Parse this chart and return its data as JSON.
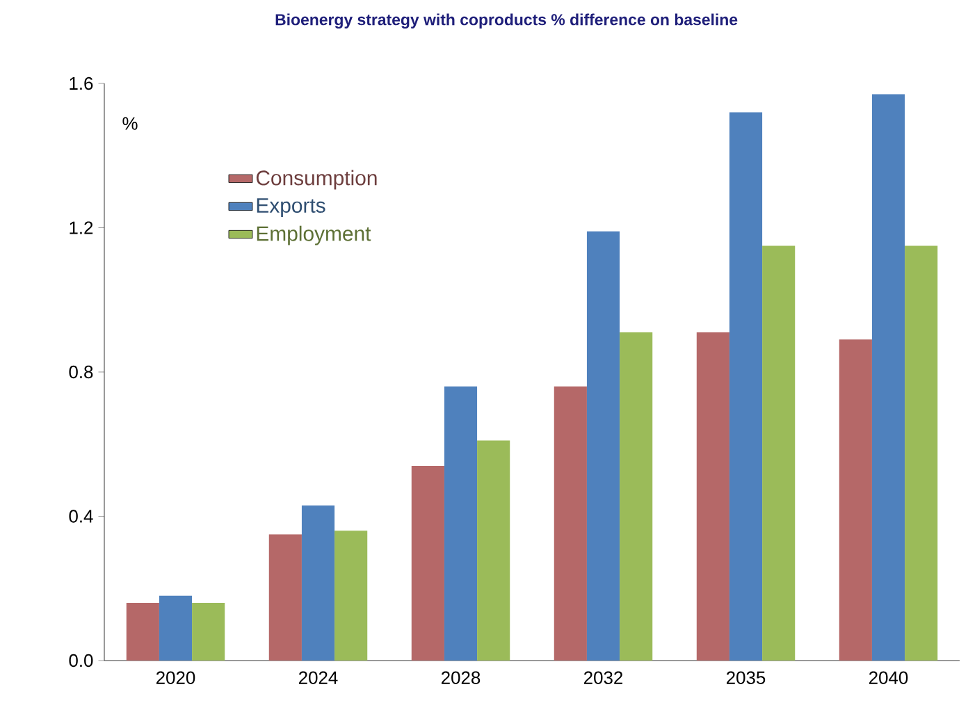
{
  "chart_data": {
    "type": "bar",
    "title": "Bioenergy strategy with coproducts % difference on baseline",
    "ylabel": "%",
    "categories": [
      "2020",
      "2024",
      "2028",
      "2032",
      "2035",
      "2040"
    ],
    "series": [
      {
        "name": "Consumption",
        "color": "#b56868",
        "values": [
          0.16,
          0.35,
          0.54,
          0.76,
          0.91,
          0.89
        ]
      },
      {
        "name": "Exports",
        "color": "#4f81bd",
        "values": [
          0.18,
          0.43,
          0.76,
          1.19,
          1.52,
          1.57
        ]
      },
      {
        "name": "Employment",
        "color": "#9bbb59",
        "values": [
          0.16,
          0.36,
          0.61,
          0.91,
          1.15,
          1.15
        ]
      }
    ],
    "ylim": [
      0,
      1.6
    ],
    "yticks": [
      {
        "value": 0,
        "label": "0.0"
      },
      0.4,
      0.8,
      1.2,
      1.6
    ],
    "grid": false,
    "legend": "top left"
  }
}
